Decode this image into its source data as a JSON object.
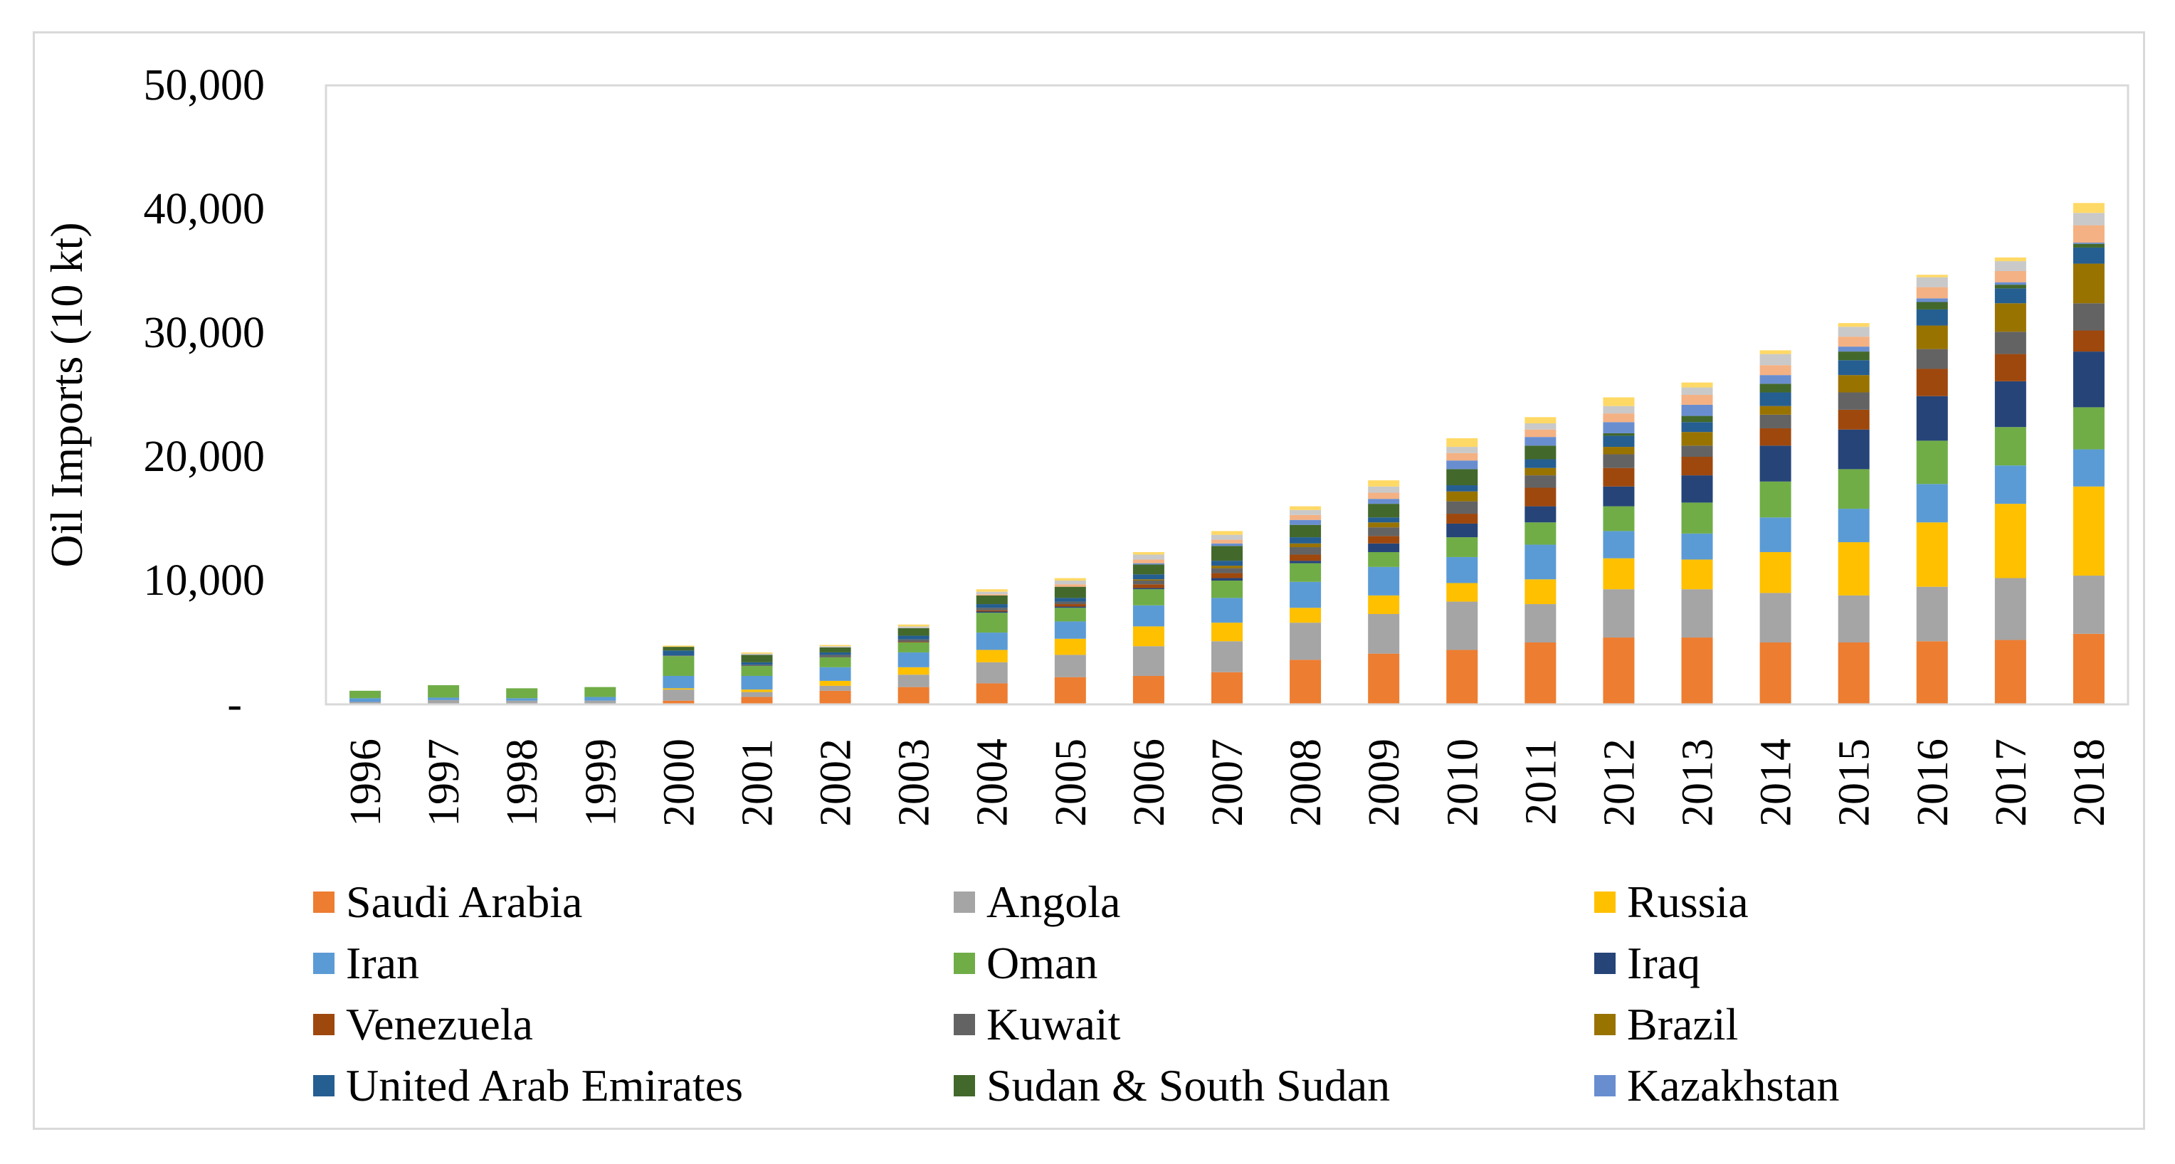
{
  "chart_data": {
    "type": "bar",
    "stacked": true,
    "ylabel": "Oil Imports (10 kt)",
    "xlabel": "",
    "ylim": [
      0,
      50000
    ],
    "yticks": [
      0,
      10000,
      20000,
      30000,
      40000,
      50000
    ],
    "ytick_labels": [
      "-",
      "10,000",
      "20,000",
      "30,000",
      "40,000",
      "50,000"
    ],
    "grid": false,
    "legend_position": "bottom",
    "categories": [
      "1996",
      "1997",
      "1998",
      "1999",
      "2000",
      "2001",
      "2002",
      "2003",
      "2004",
      "2005",
      "2006",
      "2007",
      "2008",
      "2009",
      "2010",
      "2011",
      "2012",
      "2013",
      "2014",
      "2015",
      "2016",
      "2017",
      "2018"
    ],
    "series": [
      {
        "name": "Saudi Arabia",
        "color": "#ED7D31",
        "values": [
          0,
          0,
          0,
          0,
          300,
          600,
          1100,
          1400,
          1700,
          2200,
          2300,
          2600,
          3600,
          4100,
          4400,
          5000,
          5400,
          5400,
          5000,
          5000,
          5100,
          5200,
          5700
        ]
      },
      {
        "name": "Angola",
        "color": "#A5A5A5",
        "values": [
          200,
          350,
          300,
          300,
          900,
          400,
          400,
          1000,
          1700,
          1800,
          2400,
          2500,
          3000,
          3200,
          3900,
          3100,
          3900,
          3900,
          4000,
          3800,
          4400,
          5000,
          4700
        ]
      },
      {
        "name": "Russia",
        "color": "#FFC000",
        "values": [
          0,
          0,
          0,
          0,
          100,
          200,
          400,
          600,
          1000,
          1300,
          1600,
          1500,
          1200,
          1500,
          1500,
          2000,
          2500,
          2400,
          3300,
          4300,
          5200,
          6000,
          7200
        ]
      },
      {
        "name": "Iran",
        "color": "#5B9BD5",
        "values": [
          300,
          200,
          200,
          300,
          1000,
          1100,
          1100,
          1200,
          1400,
          1400,
          1700,
          2000,
          2100,
          2300,
          2100,
          2800,
          2200,
          2100,
          2800,
          2700,
          3100,
          3100,
          3000
        ]
      },
      {
        "name": "Oman",
        "color": "#70AD47",
        "values": [
          600,
          1000,
          800,
          800,
          1600,
          800,
          800,
          800,
          1600,
          1100,
          1300,
          1400,
          1500,
          1200,
          1600,
          1800,
          2000,
          2500,
          2900,
          3200,
          3500,
          3100,
          3400
        ]
      },
      {
        "name": "Iraq",
        "color": "#264478",
        "values": [
          0,
          0,
          0,
          0,
          0,
          0,
          0,
          0,
          100,
          100,
          100,
          200,
          200,
          700,
          1100,
          1300,
          1600,
          2200,
          2900,
          3200,
          3600,
          3700,
          4500
        ]
      },
      {
        "name": "Venezuela",
        "color": "#9E480E",
        "values": [
          0,
          0,
          0,
          0,
          0,
          0,
          0,
          50,
          100,
          200,
          300,
          400,
          500,
          600,
          800,
          1500,
          1500,
          1500,
          1400,
          1600,
          2200,
          2200,
          1700
        ]
      },
      {
        "name": "Kuwait",
        "color": "#636363",
        "values": [
          0,
          0,
          0,
          0,
          50,
          100,
          200,
          200,
          200,
          200,
          300,
          400,
          600,
          700,
          1000,
          1000,
          1100,
          900,
          1100,
          1400,
          1600,
          1800,
          2200
        ]
      },
      {
        "name": "Brazil",
        "color": "#997300",
        "values": [
          0,
          0,
          0,
          0,
          0,
          0,
          0,
          0,
          0,
          0,
          100,
          200,
          300,
          400,
          800,
          600,
          600,
          1100,
          700,
          1400,
          1900,
          2300,
          3200
        ]
      },
      {
        "name": "United Arab Emirates",
        "color": "#255E91",
        "values": [
          0,
          0,
          0,
          0,
          400,
          200,
          200,
          300,
          300,
          300,
          400,
          400,
          500,
          400,
          500,
          700,
          900,
          800,
          1100,
          1200,
          1300,
          1200,
          1300
        ]
      },
      {
        "name": "Sudan & South Sudan",
        "color": "#43682B",
        "values": [
          0,
          0,
          0,
          0,
          300,
          600,
          400,
          600,
          700,
          900,
          800,
          1200,
          1000,
          1100,
          1300,
          1100,
          200,
          500,
          700,
          700,
          600,
          300,
          300
        ]
      },
      {
        "name": "Kazakhstan",
        "color": "#698ED0",
        "values": [
          0,
          0,
          0,
          0,
          0,
          0,
          0,
          0,
          0,
          0,
          100,
          200,
          400,
          400,
          700,
          700,
          900,
          900,
          700,
          400,
          300,
          200,
          100
        ]
      },
      {
        "name": "",
        "color": "#F4B183",
        "values": [
          0,
          0,
          0,
          0,
          0,
          0,
          0,
          0,
          100,
          200,
          300,
          300,
          400,
          500,
          600,
          600,
          700,
          800,
          800,
          800,
          900,
          900,
          1400
        ]
      },
      {
        "name": "",
        "color": "#C9C9C9",
        "values": [
          0,
          0,
          0,
          0,
          0,
          100,
          100,
          150,
          200,
          300,
          400,
          400,
          400,
          500,
          500,
          500,
          600,
          600,
          900,
          800,
          800,
          800,
          1000
        ]
      },
      {
        "name": "",
        "color": "#FFD966",
        "values": [
          0,
          0,
          0,
          0,
          100,
          100,
          100,
          150,
          200,
          200,
          200,
          300,
          300,
          500,
          700,
          500,
          700,
          400,
          300,
          300,
          200,
          300,
          800
        ]
      }
    ]
  }
}
